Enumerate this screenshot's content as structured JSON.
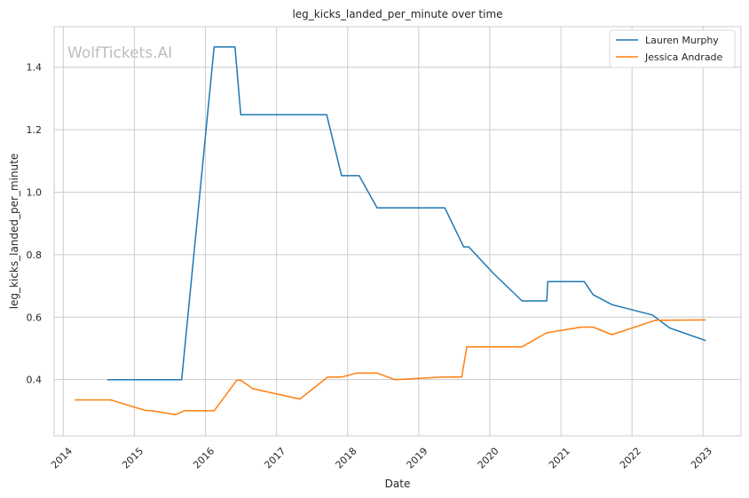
{
  "chart_data": {
    "type": "line",
    "title": "leg_kicks_landed_per_minute over time",
    "xlabel": "Date",
    "ylabel": "leg_kicks_landed_per_minute",
    "watermark": "WolfTickets.AI",
    "xlim": [
      "2013-11-15",
      "2023-07-15"
    ],
    "ylim": [
      0.22,
      1.53
    ],
    "x_ticks": [
      "2014",
      "2015",
      "2016",
      "2017",
      "2018",
      "2019",
      "2020",
      "2021",
      "2022",
      "2023"
    ],
    "y_ticks": [
      0.4,
      0.6,
      0.8,
      1.0,
      1.2,
      1.4
    ],
    "y_tick_labels": [
      "0.4",
      "0.6",
      "0.8",
      "1.0",
      "1.2",
      "1.4"
    ],
    "grid": true,
    "legend_position": "top-right",
    "series": [
      {
        "name": "Lauren Murphy",
        "color": "#1f77b4",
        "points": [
          {
            "x": "2014-08-15",
            "y": 0.4
          },
          {
            "x": "2015-09-01",
            "y": 0.4
          },
          {
            "x": "2016-02-15",
            "y": 1.465
          },
          {
            "x": "2016-06-01",
            "y": 1.465
          },
          {
            "x": "2016-07-01",
            "y": 1.248
          },
          {
            "x": "2017-09-15",
            "y": 1.248
          },
          {
            "x": "2017-12-01",
            "y": 1.053
          },
          {
            "x": "2018-03-01",
            "y": 1.053
          },
          {
            "x": "2018-06-01",
            "y": 0.95
          },
          {
            "x": "2019-05-15",
            "y": 0.95
          },
          {
            "x": "2019-08-20",
            "y": 0.825
          },
          {
            "x": "2019-09-15",
            "y": 0.825
          },
          {
            "x": "2020-01-20",
            "y": 0.74
          },
          {
            "x": "2020-06-15",
            "y": 0.652
          },
          {
            "x": "2020-10-20",
            "y": 0.652
          },
          {
            "x": "2020-10-25",
            "y": 0.714
          },
          {
            "x": "2021-05-01",
            "y": 0.714
          },
          {
            "x": "2021-06-15",
            "y": 0.672
          },
          {
            "x": "2021-09-20",
            "y": 0.64
          },
          {
            "x": "2022-04-15",
            "y": 0.607
          },
          {
            "x": "2022-07-15",
            "y": 0.565
          },
          {
            "x": "2023-01-15",
            "y": 0.525
          }
        ]
      },
      {
        "name": "Jessica Andrade",
        "color": "#ff7f0e",
        "points": [
          {
            "x": "2014-03-01",
            "y": 0.335
          },
          {
            "x": "2014-09-01",
            "y": 0.335
          },
          {
            "x": "2015-03-01",
            "y": 0.301
          },
          {
            "x": "2015-04-01",
            "y": 0.3
          },
          {
            "x": "2015-08-01",
            "y": 0.288
          },
          {
            "x": "2015-09-15",
            "y": 0.3
          },
          {
            "x": "2016-02-15",
            "y": 0.3
          },
          {
            "x": "2016-06-10",
            "y": 0.398
          },
          {
            "x": "2016-07-01",
            "y": 0.398
          },
          {
            "x": "2016-09-01",
            "y": 0.371
          },
          {
            "x": "2017-05-01",
            "y": 0.338
          },
          {
            "x": "2017-09-20",
            "y": 0.408
          },
          {
            "x": "2017-12-01",
            "y": 0.408
          },
          {
            "x": "2018-02-15",
            "y": 0.421
          },
          {
            "x": "2018-06-01",
            "y": 0.421
          },
          {
            "x": "2018-09-01",
            "y": 0.4
          },
          {
            "x": "2019-05-01",
            "y": 0.408
          },
          {
            "x": "2019-08-10",
            "y": 0.408
          },
          {
            "x": "2019-09-05",
            "y": 0.505
          },
          {
            "x": "2020-06-15",
            "y": 0.505
          },
          {
            "x": "2020-10-20",
            "y": 0.55
          },
          {
            "x": "2021-04-15",
            "y": 0.568
          },
          {
            "x": "2021-06-15",
            "y": 0.568
          },
          {
            "x": "2021-09-20",
            "y": 0.544
          },
          {
            "x": "2022-05-01",
            "y": 0.59
          },
          {
            "x": "2023-01-15",
            "y": 0.591
          }
        ]
      }
    ]
  }
}
